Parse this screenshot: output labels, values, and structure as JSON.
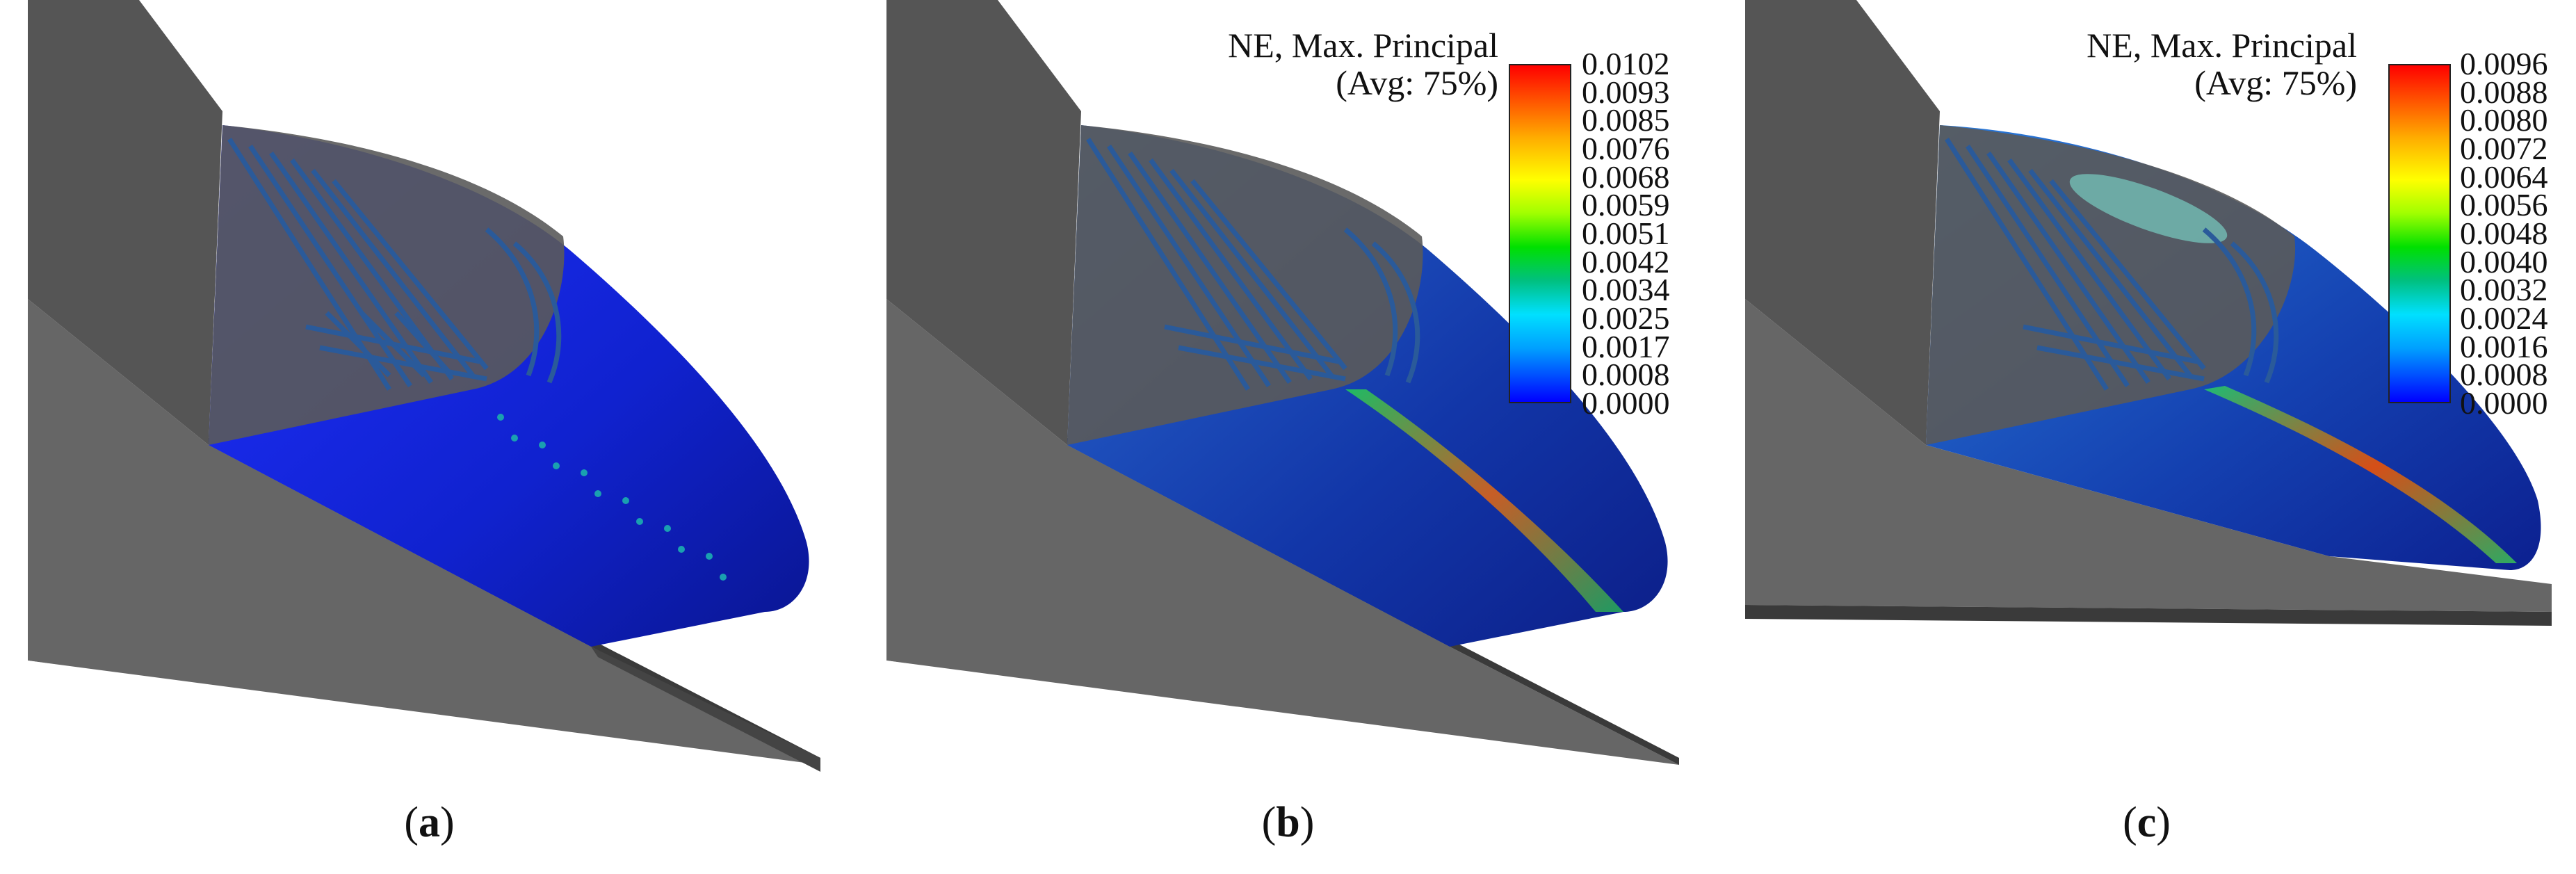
{
  "panels": [
    {
      "caption_label": "a",
      "caption_open": "(",
      "caption_close": ")"
    },
    {
      "caption_label": "b",
      "caption_open": "(",
      "caption_close": ")",
      "legend": {
        "title_line1": "NE, Max. Principal",
        "title_line2": "(Avg: 75%)",
        "ticks": [
          "0.0102",
          "0.0093",
          "0.0085",
          "0.0076",
          "0.0068",
          "0.0059",
          "0.0051",
          "0.0042",
          "0.0034",
          "0.0025",
          "0.0017",
          "0.0008",
          "0.0000"
        ]
      }
    },
    {
      "caption_label": "c",
      "caption_open": "(",
      "caption_close": ")",
      "legend": {
        "title_line1": "NE, Max. Principal",
        "title_line2": "(Avg: 75%)",
        "ticks": [
          "0.0096",
          "0.0088",
          "0.0080",
          "0.0072",
          "0.0064",
          "0.0056",
          "0.0048",
          "0.0040",
          "0.0032",
          "0.0024",
          "0.0016",
          "0.0008",
          "0.0000"
        ]
      }
    }
  ],
  "colors": {
    "background": "#ffffff",
    "grey_body": "#5c5c5c",
    "grey_dark": "#3f3f3f",
    "fairing_blue": "#1020d8",
    "strain_high": "#ff0000",
    "strain_low": "#0000ff"
  }
}
